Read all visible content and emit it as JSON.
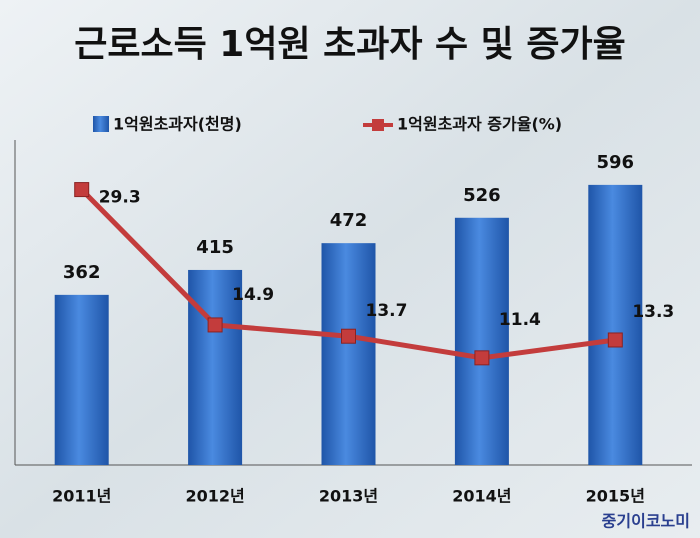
{
  "chart_data": {
    "type": "bar-line",
    "title": "근로소득 1억원 초과자 수 및 증가율",
    "categories": [
      "2011년",
      "2012년",
      "2013년",
      "2014년",
      "2015년"
    ],
    "series": [
      {
        "name": "1억원초과자(천명)",
        "type": "bar",
        "color": "#2f6fc8",
        "values": [
          362,
          415,
          472,
          526,
          596
        ]
      },
      {
        "name": "1억원초과자 증가율(%)",
        "type": "line",
        "axis": "y2",
        "color": "#c33c3c",
        "values": [
          29.3,
          14.9,
          13.7,
          11.4,
          13.3
        ]
      }
    ],
    "ylim": [
      0,
      700
    ],
    "y2lim": [
      0,
      35
    ],
    "source": "중기이코노미"
  }
}
